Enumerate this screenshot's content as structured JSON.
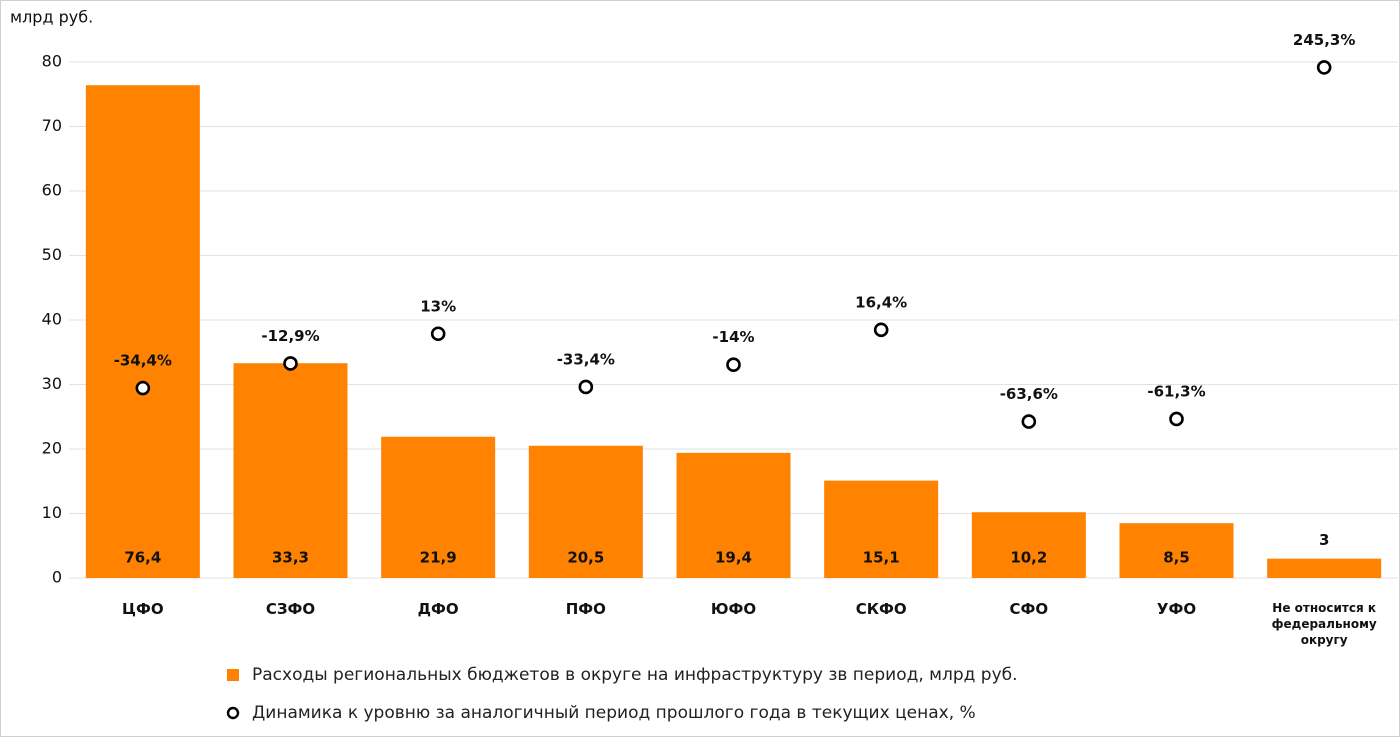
{
  "chart_data": {
    "type": "bar",
    "ylabel": "млрд руб.",
    "categories": [
      "ЦФО",
      "СЗФО",
      "ДФО",
      "ПФО",
      "ЮФО",
      "СКФО",
      "СФО",
      "УФО",
      "Не относится к федеральному округу"
    ],
    "ylim": [
      0,
      80
    ],
    "yticks": [
      0,
      10,
      20,
      30,
      40,
      50,
      60,
      70,
      80
    ],
    "y2lim": [
      -200,
      250
    ],
    "grid": true,
    "series": [
      {
        "name": "Расходы региональных бюджетов в округе на инфраструктуру зв период, млрд руб.",
        "type": "bar",
        "color": "#ff8200",
        "values": [
          76.4,
          33.3,
          21.9,
          20.5,
          19.4,
          15.1,
          10.2,
          8.5,
          3
        ],
        "value_labels": [
          "76,4",
          "33,3",
          "21,9",
          "20,5",
          "19,4",
          "15,1",
          "10,2",
          "8,5",
          "3"
        ]
      },
      {
        "name": "Динамика к уровню за аналогичный период прошлого года в текущих ценах, %",
        "type": "scatter",
        "axis": "y2",
        "color": "#000000",
        "values": [
          -34.4,
          -12.9,
          13,
          -33.4,
          -14,
          16.4,
          -63.6,
          -61.3,
          245.3
        ],
        "value_labels": [
          "-34,4%",
          "-12,9%",
          "13%",
          "-33,4%",
          "-14%",
          "16,4%",
          "-63,6%",
          "-61,3%",
          "245,3%"
        ]
      }
    ]
  }
}
